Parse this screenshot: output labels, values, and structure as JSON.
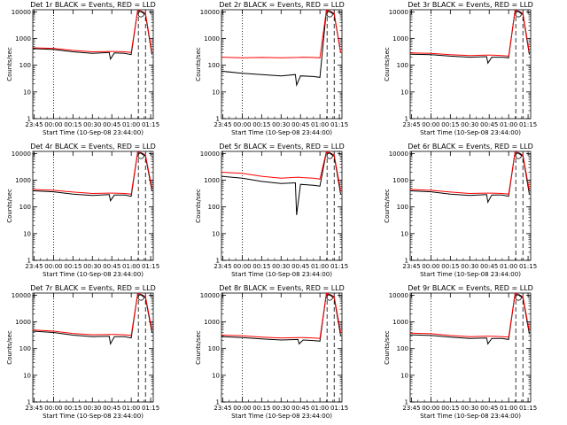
{
  "figure": {
    "xlabel": "Start Time (10-Sep-08 23:44:00)",
    "ylabel": "Counts/sec",
    "colors": {
      "events": "#000000",
      "lld": "#ff0000",
      "axis": "#000000"
    }
  },
  "chart_data": [
    {
      "type": "line",
      "title": "Det 1r BLACK = Events, RED = LLD",
      "x_ticks": [
        "23:45",
        "00:00",
        "00:15",
        "00:30",
        "00:45",
        "01:00",
        "01:15"
      ],
      "y_ticks": [
        "1",
        "10",
        "100",
        "1000",
        "10000"
      ],
      "ylim": [
        1,
        12000
      ],
      "xlim": [
        -1,
        92
      ],
      "yscale": "log",
      "annotation": "o",
      "series": [
        {
          "role": "events",
          "x": [
            -1,
            15,
            30,
            45,
            58,
            59,
            62,
            70,
            75,
            80,
            86,
            91
          ],
          "y": [
            420,
            390,
            320,
            280,
            300,
            170,
            290,
            280,
            250,
            12000,
            8000,
            250
          ]
        },
        {
          "role": "lld",
          "x": [
            -1,
            15,
            30,
            45,
            58,
            62,
            70,
            75,
            80,
            86,
            91
          ],
          "y": [
            450,
            430,
            360,
            320,
            330,
            330,
            320,
            300,
            12000,
            9000,
            300
          ]
        }
      ]
    },
    {
      "type": "line",
      "title": "Det 2r BLACK = Events, RED = LLD",
      "x_ticks": [
        "23:45",
        "00:00",
        "00:15",
        "00:30",
        "00:45",
        "01:00",
        "01:15"
      ],
      "y_ticks": [
        "1",
        "10",
        "100",
        "1000",
        "10000"
      ],
      "ylim": [
        1,
        12000
      ],
      "xlim": [
        -1,
        92
      ],
      "yscale": "log",
      "annotation": "o",
      "series": [
        {
          "role": "events",
          "x": [
            -1,
            15,
            30,
            45,
            56,
            57,
            60,
            70,
            75,
            80,
            86,
            91
          ],
          "y": [
            60,
            50,
            45,
            40,
            45,
            18,
            40,
            38,
            35,
            12000,
            8000,
            300
          ]
        },
        {
          "role": "lld",
          "x": [
            -1,
            15,
            30,
            45,
            58,
            62,
            70,
            75,
            80,
            86,
            91
          ],
          "y": [
            200,
            190,
            195,
            190,
            195,
            200,
            195,
            190,
            12000,
            9000,
            300
          ]
        }
      ]
    },
    {
      "type": "line",
      "title": "Det 3r BLACK = Events, RED = LLD",
      "x_ticks": [
        "23:45",
        "00:00",
        "00:15",
        "00:30",
        "00:45",
        "01:00",
        "01:15"
      ],
      "y_ticks": [
        "1",
        "10",
        "100",
        "1000",
        "10000"
      ],
      "ylim": [
        1,
        12000
      ],
      "xlim": [
        -1,
        92
      ],
      "yscale": "log",
      "annotation": "o",
      "series": [
        {
          "role": "events",
          "x": [
            -1,
            15,
            30,
            45,
            58,
            59,
            62,
            70,
            75,
            80,
            86,
            91
          ],
          "y": [
            260,
            250,
            220,
            200,
            210,
            120,
            200,
            200,
            190,
            12000,
            8000,
            250
          ]
        },
        {
          "role": "lld",
          "x": [
            -1,
            15,
            30,
            45,
            58,
            62,
            70,
            75,
            80,
            86,
            91
          ],
          "y": [
            290,
            280,
            250,
            230,
            240,
            240,
            230,
            220,
            12000,
            9000,
            300
          ]
        }
      ]
    },
    {
      "type": "line",
      "title": "Det 4r BLACK = Events, RED = LLD",
      "x_ticks": [
        "23:45",
        "00:00",
        "00:15",
        "00:30",
        "00:45",
        "01:00",
        "01:15"
      ],
      "y_ticks": [
        "1",
        "10",
        "100",
        "1000",
        "10000"
      ],
      "ylim": [
        1,
        12000
      ],
      "xlim": [
        -1,
        92
      ],
      "yscale": "log",
      "annotation": "o",
      "series": [
        {
          "role": "events",
          "x": [
            -1,
            15,
            30,
            45,
            58,
            59,
            62,
            70,
            75,
            80,
            86,
            91
          ],
          "y": [
            400,
            370,
            300,
            270,
            290,
            170,
            280,
            280,
            250,
            12000,
            8000,
            400
          ]
        },
        {
          "role": "lld",
          "x": [
            -1,
            15,
            30,
            45,
            58,
            62,
            70,
            75,
            80,
            86,
            91
          ],
          "y": [
            450,
            420,
            360,
            320,
            330,
            330,
            320,
            300,
            12000,
            9000,
            500
          ]
        }
      ]
    },
    {
      "type": "line",
      "title": "Det 5r BLACK = Events, RED = LLD",
      "x_ticks": [
        "23:45",
        "00:00",
        "00:15",
        "00:30",
        "00:45",
        "01:00",
        "01:15"
      ],
      "y_ticks": [
        "1",
        "10",
        "100",
        "1000",
        "10000"
      ],
      "ylim": [
        1,
        12000
      ],
      "xlim": [
        -1,
        92
      ],
      "yscale": "log",
      "annotation": "o",
      "series": [
        {
          "role": "events",
          "x": [
            -1,
            15,
            30,
            45,
            56,
            57,
            60,
            70,
            75,
            80,
            86,
            91
          ],
          "y": [
            1400,
            1200,
            900,
            750,
            800,
            50,
            700,
            650,
            600,
            12000,
            8000,
            300
          ]
        },
        {
          "role": "lld",
          "x": [
            -1,
            15,
            30,
            45,
            58,
            62,
            70,
            75,
            80,
            86,
            91
          ],
          "y": [
            2000,
            1800,
            1400,
            1200,
            1300,
            1250,
            1200,
            1100,
            12000,
            9000,
            400
          ]
        }
      ]
    },
    {
      "type": "line",
      "title": "Det 6r BLACK = Events, RED = LLD",
      "x_ticks": [
        "23:45",
        "00:00",
        "00:15",
        "00:30",
        "00:45",
        "01:00",
        "01:15"
      ],
      "y_ticks": [
        "1",
        "10",
        "100",
        "1000",
        "10000"
      ],
      "ylim": [
        1,
        12000
      ],
      "xlim": [
        -1,
        92
      ],
      "yscale": "log",
      "annotation": "o",
      "series": [
        {
          "role": "events",
          "x": [
            -1,
            15,
            30,
            45,
            58,
            59,
            62,
            70,
            75,
            80,
            86,
            91
          ],
          "y": [
            400,
            370,
            300,
            270,
            290,
            150,
            280,
            280,
            250,
            12000,
            8000,
            300
          ]
        },
        {
          "role": "lld",
          "x": [
            -1,
            15,
            30,
            45,
            58,
            62,
            70,
            75,
            80,
            86,
            91
          ],
          "y": [
            450,
            420,
            360,
            320,
            330,
            330,
            320,
            300,
            12000,
            9000,
            400
          ]
        }
      ]
    },
    {
      "type": "line",
      "title": "Det 7r BLACK = Events, RED = LLD",
      "x_ticks": [
        "23:45",
        "00:00",
        "00:15",
        "00:30",
        "00:45",
        "01:00",
        "01:15"
      ],
      "y_ticks": [
        "1",
        "10",
        "100",
        "1000",
        "10000"
      ],
      "ylim": [
        1,
        12000
      ],
      "xlim": [
        -1,
        92
      ],
      "yscale": "log",
      "annotation": "o",
      "series": [
        {
          "role": "events",
          "x": [
            -1,
            15,
            30,
            45,
            58,
            59,
            62,
            70,
            75,
            80,
            86,
            91
          ],
          "y": [
            450,
            400,
            320,
            280,
            290,
            150,
            280,
            280,
            250,
            12000,
            8000,
            400
          ]
        },
        {
          "role": "lld",
          "x": [
            -1,
            15,
            30,
            45,
            58,
            62,
            70,
            75,
            80,
            86,
            91
          ],
          "y": [
            500,
            450,
            370,
            330,
            340,
            340,
            330,
            310,
            12000,
            9000,
            500
          ]
        }
      ]
    },
    {
      "type": "line",
      "title": "Det 8r BLACK = Events, RED = LLD",
      "x_ticks": [
        "23:45",
        "00:00",
        "00:15",
        "00:30",
        "00:45",
        "01:00",
        "01:15"
      ],
      "y_ticks": [
        "1",
        "10",
        "100",
        "1000",
        "10000"
      ],
      "ylim": [
        1,
        12000
      ],
      "xlim": [
        -1,
        92
      ],
      "yscale": "log",
      "annotation": "o",
      "series": [
        {
          "role": "events",
          "x": [
            -1,
            15,
            30,
            45,
            58,
            59,
            62,
            70,
            75,
            80,
            86,
            91
          ],
          "y": [
            280,
            260,
            230,
            210,
            220,
            150,
            210,
            200,
            190,
            12000,
            8000,
            300
          ]
        },
        {
          "role": "lld",
          "x": [
            -1,
            15,
            30,
            45,
            58,
            62,
            70,
            75,
            80,
            86,
            91
          ],
          "y": [
            320,
            300,
            270,
            250,
            260,
            260,
            250,
            240,
            12000,
            9000,
            400
          ]
        }
      ]
    },
    {
      "type": "line",
      "title": "Det 9r BLACK = Events, RED = LLD",
      "x_ticks": [
        "23:45",
        "00:00",
        "00:15",
        "00:30",
        "00:45",
        "01:00",
        "01:15"
      ],
      "y_ticks": [
        "1",
        "10",
        "100",
        "1000",
        "10000"
      ],
      "ylim": [
        1,
        12000
      ],
      "xlim": [
        -1,
        92
      ],
      "yscale": "log",
      "annotation": "o",
      "series": [
        {
          "role": "events",
          "x": [
            -1,
            15,
            30,
            45,
            58,
            59,
            62,
            70,
            75,
            80,
            86,
            91
          ],
          "y": [
            330,
            310,
            270,
            240,
            250,
            150,
            240,
            240,
            220,
            12000,
            8000,
            350
          ]
        },
        {
          "role": "lld",
          "x": [
            -1,
            15,
            30,
            45,
            58,
            62,
            70,
            75,
            80,
            86,
            91
          ],
          "y": [
            380,
            360,
            310,
            280,
            290,
            290,
            280,
            270,
            12000,
            9000,
            450
          ]
        }
      ]
    }
  ]
}
